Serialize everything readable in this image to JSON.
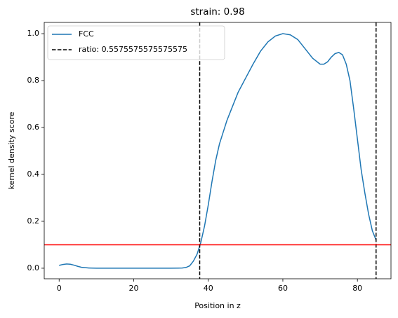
{
  "chart_data": {
    "type": "line",
    "title": "strain: 0.98",
    "xlabel": "Position in z",
    "ylabel": "kernel density score",
    "x": [
      0,
      1,
      2,
      3,
      4,
      5,
      6,
      8,
      10,
      15,
      20,
      25,
      30,
      33,
      34,
      35,
      36,
      37,
      38,
      39,
      40,
      41,
      42,
      43,
      44,
      45,
      46,
      47,
      48,
      49,
      50,
      52,
      54,
      56,
      58,
      60,
      62,
      64,
      66,
      68,
      70,
      71,
      72,
      73,
      74,
      75,
      76,
      77,
      78,
      79,
      80,
      81,
      82,
      83,
      84,
      85
    ],
    "series": [
      {
        "name": "FCC",
        "color": "#1f77b4",
        "values": [
          0.012,
          0.016,
          0.018,
          0.017,
          0.013,
          0.008,
          0.004,
          0.001,
          0.0,
          0.0,
          0.0,
          0.0,
          0.0,
          0.001,
          0.003,
          0.01,
          0.03,
          0.06,
          0.11,
          0.18,
          0.27,
          0.37,
          0.46,
          0.53,
          0.58,
          0.63,
          0.67,
          0.71,
          0.75,
          0.78,
          0.81,
          0.87,
          0.925,
          0.965,
          0.99,
          1.0,
          0.995,
          0.975,
          0.935,
          0.895,
          0.87,
          0.87,
          0.88,
          0.9,
          0.915,
          0.92,
          0.91,
          0.87,
          0.8,
          0.68,
          0.55,
          0.42,
          0.32,
          0.23,
          0.16,
          0.12
        ]
      }
    ],
    "vlines": {
      "name": "ratio: 0.5575575575575575",
      "color": "#000000",
      "x": [
        37.7,
        85
      ]
    },
    "hline": {
      "y": 0.1,
      "color": "#ff0000"
    },
    "xlim": [
      -4,
      89
    ],
    "ylim": [
      -0.045,
      1.048
    ],
    "xticks": [
      0,
      20,
      40,
      60,
      80
    ],
    "yticks": [
      {
        "value": 0,
        "label": "0.0"
      },
      0.2,
      0.4,
      0.6,
      0.8,
      {
        "value": 1,
        "label": "1.0"
      }
    ],
    "legend": "upper left"
  }
}
